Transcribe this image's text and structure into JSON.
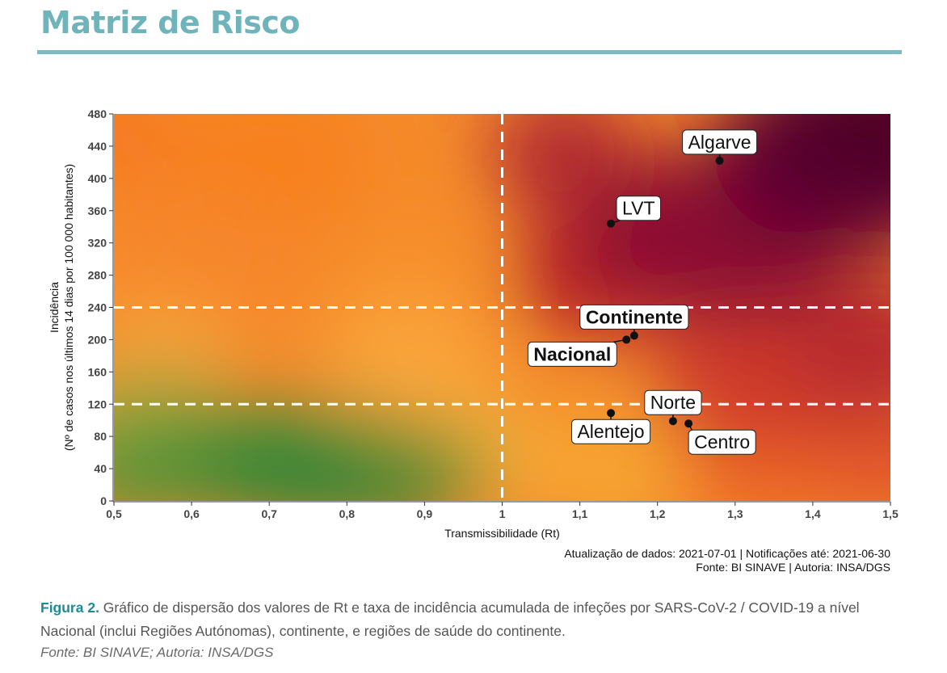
{
  "header": {
    "title": "Matriz de Risco"
  },
  "chart_data": {
    "type": "scatter",
    "xlabel": "Transmissibilidade (Rt)",
    "ylabel_lines": [
      "Incidência",
      "(Nº de casos nos últimos 14 dias por 100 000 habitantes)"
    ],
    "xlim": [
      0.5,
      1.5
    ],
    "ylim": [
      0,
      480
    ],
    "x_ticks": [
      0.5,
      0.6,
      0.7,
      0.8,
      0.9,
      1,
      1.1,
      1.2,
      1.3,
      1.4,
      1.5
    ],
    "x_tick_labels": [
      "0,5",
      "0,6",
      "0,7",
      "0,8",
      "0,9",
      "1",
      "1,1",
      "1,2",
      "1,3",
      "1,4",
      "1,5"
    ],
    "y_ticks": [
      0,
      40,
      80,
      120,
      160,
      200,
      240,
      280,
      320,
      360,
      400,
      440,
      480
    ],
    "y_tick_labels": [
      "0",
      "40",
      "80",
      "120",
      "160",
      "200",
      "240",
      "280",
      "320",
      "360",
      "400",
      "440",
      "480"
    ],
    "reference_lines": {
      "x": [
        1
      ],
      "y": [
        120,
        240
      ]
    },
    "background": "risk gradient: green (low Rt, low incidence) to orange to dark red (high Rt, high incidence)",
    "points": [
      {
        "label": "Algarve",
        "x": 1.28,
        "y": 422,
        "bold": false,
        "label_pos": "above"
      },
      {
        "label": "LVT",
        "x": 1.14,
        "y": 344,
        "bold": false,
        "label_pos": "above-right"
      },
      {
        "label": "Continente",
        "x": 1.17,
        "y": 205,
        "bold": true,
        "label_pos": "above"
      },
      {
        "label": "Nacional",
        "x": 1.16,
        "y": 200,
        "bold": true,
        "label_pos": "left-below"
      },
      {
        "label": "Norte",
        "x": 1.22,
        "y": 99,
        "bold": false,
        "label_pos": "above"
      },
      {
        "label": "Alentejo",
        "x": 1.14,
        "y": 109,
        "bold": false,
        "label_pos": "below"
      },
      {
        "label": "Centro",
        "x": 1.24,
        "y": 96,
        "bold": false,
        "label_pos": "below-right"
      }
    ],
    "notes": [
      "Atualização de dados: 2021-07-01 | Notificações até: 2021-06-30",
      "Fonte: BI SINAVE | Autoria: INSA/DGS"
    ]
  },
  "caption": {
    "label": "Figura 2.",
    "text": " Gráfico de dispersão dos valores de Rt e taxa de incidência acumulada de infeções por SARS-CoV-2 / COVID-19 a nível Nacional (inclui Regiões Autónomas), continente, e regiões de saúde do continente.",
    "source": "Fonte: BI SINAVE; Autoria: INSA/DGS"
  }
}
